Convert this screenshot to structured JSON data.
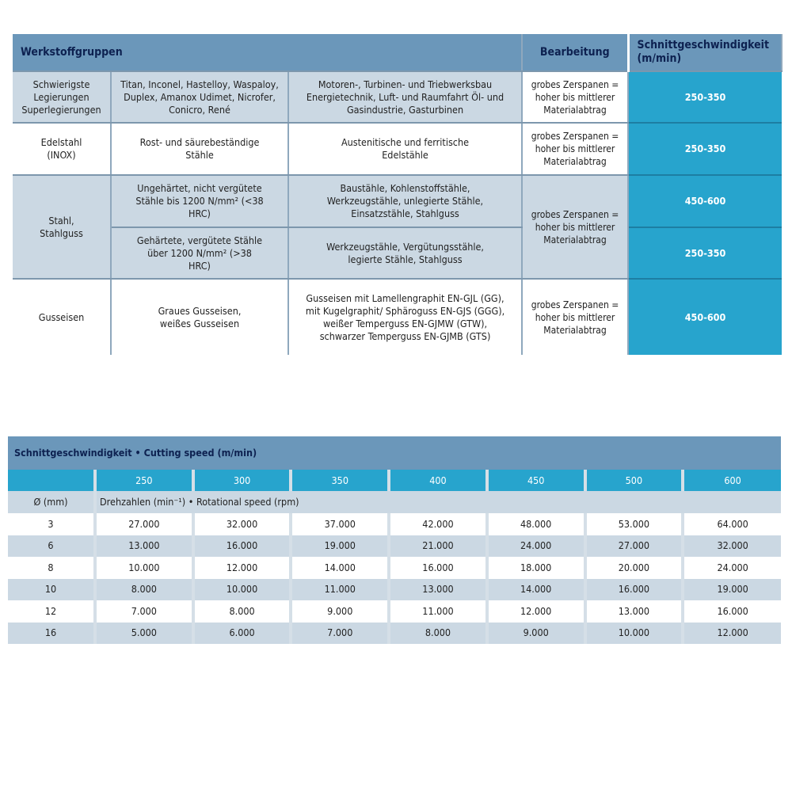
{
  "table1": {
    "headers": {
      "group": "Werkstoffgruppen",
      "processing": "Bearbeitung",
      "speed": "Schnittgeschwindigkeit (m/min)"
    },
    "rows": [
      {
        "group": "Schwierigste Legierungen Superlegierungen",
        "materials": "Titan, Inconel, Hastelloy, Waspaloy, Duplex, Amanox Udimet, Nicrofer, Conicro, René",
        "applications": "Motoren-, Turbinen- und Triebwerksbau Energietechnik, Luft- und Raumfahrt Öl- und Gasindustrie, Gasturbinen",
        "processing": "grobes Zerspanen = hoher bis mittlerer Materialabtrag",
        "speed": "250-350"
      },
      {
        "group": "Edelstahl (INOX)",
        "materials": "Rost- und säurebeständige Stähle",
        "applications": "Austenitische und ferritische Edelstähle",
        "processing": "grobes Zerspanen = hoher bis mittlerer Materialabtrag",
        "speed": "250-350"
      },
      {
        "group": "Stahl, Stahlguss",
        "materials": "Ungehärtet, nicht vergütete Stähle bis 1200 N/mm² (<38 HRC)",
        "applications": "Baustähle, Kohlenstoffstähle, Werkzeugstähle, unlegierte Stähle, Einsatzstähle, Stahlguss",
        "processing": "grobes Zerspanen = hoher bis mittlerer Materialabtrag",
        "speed": "450-600"
      },
      {
        "materials": "Gehärtete, vergütete Stähle über 1200 N/mm² (>38 HRC)",
        "applications": "Werkzeugstähle, Vergütungsstähle, legierte Stähle, Stahlguss",
        "speed": "250-350"
      },
      {
        "group": "Gusseisen",
        "materials": "Graues Gusseisen, weißes Gusseisen",
        "applications": "Gusseisen mit Lamellengraphit EN-GJL (GG), mit Kugelgraphit/ Sphäroguss EN-GJS (GGG), weißer Temperguss EN-GJMW (GTW), schwarzer Temperguss EN-GJMB (GTS)",
        "processing": "grobes Zerspanen = hoher bis mittlerer Materialabtrag",
        "speed": "450-600"
      }
    ]
  },
  "table2": {
    "title": "Schnittgeschwindigkeit • Cutting speed (m/min)",
    "speeds": [
      "250",
      "300",
      "350",
      "400",
      "450",
      "500",
      "600"
    ],
    "diameter_label": "Ø (mm)",
    "rpm_label": "Drehzahlen (min⁻¹) • Rotational speed (rpm)",
    "rows": [
      {
        "d": "3",
        "v": [
          "27.000",
          "32.000",
          "37.000",
          "42.000",
          "48.000",
          "53.000",
          "64.000"
        ]
      },
      {
        "d": "6",
        "v": [
          "13.000",
          "16.000",
          "19.000",
          "21.000",
          "24.000",
          "27.000",
          "32.000"
        ]
      },
      {
        "d": "8",
        "v": [
          "10.000",
          "12.000",
          "14.000",
          "16.000",
          "18.000",
          "20.000",
          "24.000"
        ]
      },
      {
        "d": "10",
        "v": [
          "8.000",
          "10.000",
          "11.000",
          "13.000",
          "14.000",
          "16.000",
          "19.000"
        ]
      },
      {
        "d": "12",
        "v": [
          "7.000",
          "8.000",
          "9.000",
          "11.000",
          "12.000",
          "13.000",
          "16.000"
        ]
      },
      {
        "d": "16",
        "v": [
          "5.000",
          "6.000",
          "7.000",
          "8.000",
          "9.000",
          "10.000",
          "12.000"
        ]
      }
    ]
  }
}
